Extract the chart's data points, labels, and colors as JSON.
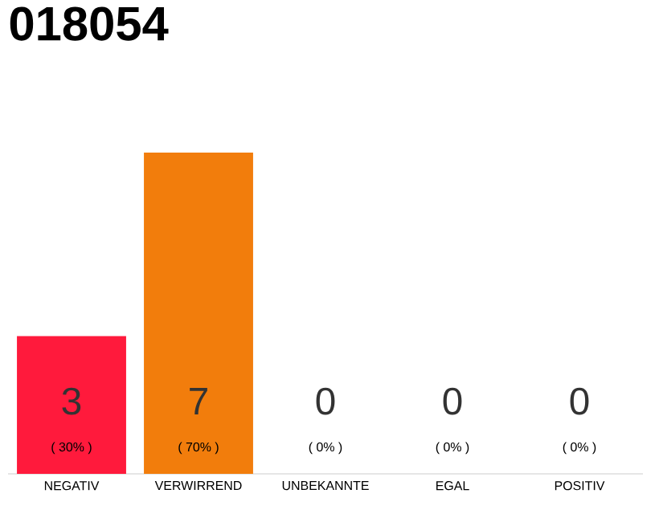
{
  "chart_data": {
    "type": "bar",
    "title": "018054",
    "categories": [
      "NEGATIV",
      "VERWIRREND",
      "UNBEKANNTE",
      "EGAL",
      "POSITIV"
    ],
    "values": [
      3,
      7,
      0,
      0,
      0
    ],
    "colors": [
      "#ff1a3c",
      "#f27d0c",
      "#cccccc",
      "#cccccc",
      "#cccccc"
    ],
    "data_labels": true,
    "annotations": [
      "( 30% )",
      "( 70% )",
      "( 0% )",
      "( 0% )",
      "( 0% )"
    ],
    "tick_labels": "x"
  }
}
